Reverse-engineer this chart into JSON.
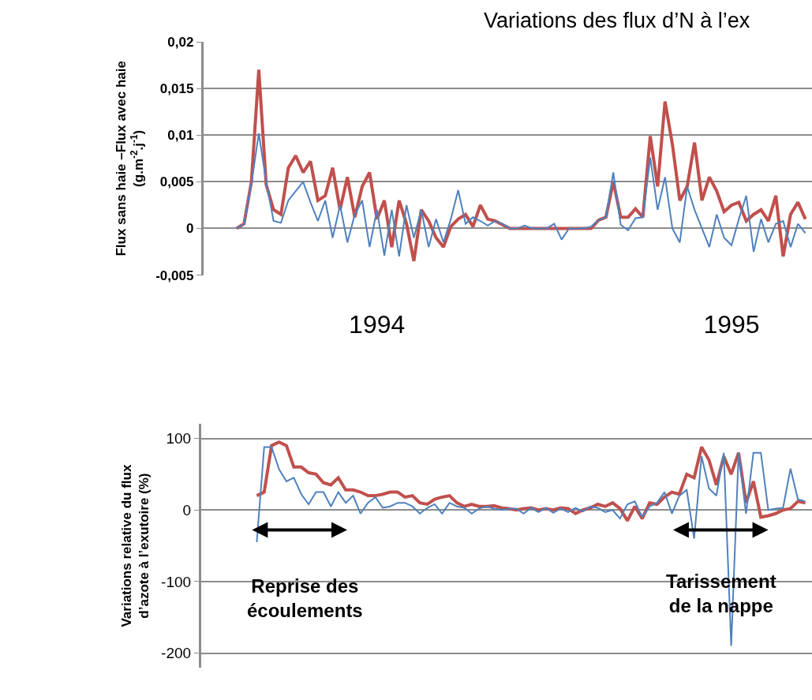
{
  "chart_data": [
    {
      "type": "line",
      "title": "Variations des flux d’N à l’ex",
      "ylabel": "Flux sans haie –Flux avec haie\n(g.m$^{-2}$.j$^{-1}$)",
      "categories": [
        null,
        null,
        null,
        null,
        null,
        null,
        null,
        null,
        null,
        null,
        null,
        null,
        null,
        null,
        null,
        null,
        null,
        null,
        null,
        null,
        null,
        null,
        null,
        "1994",
        null,
        null,
        null,
        null,
        null,
        null,
        null,
        null,
        null,
        null,
        null,
        null,
        null,
        null,
        null,
        null,
        null,
        null,
        null,
        null,
        null,
        null,
        null,
        null,
        null,
        null,
        null,
        null,
        null,
        null,
        null,
        null,
        null,
        null,
        null,
        null,
        null,
        null,
        null,
        null,
        null,
        null,
        null,
        null,
        null,
        null,
        null,
        "1995",
        null,
        null,
        null,
        null,
        null,
        null,
        null,
        null,
        null,
        null
      ],
      "series": [
        {
          "color": "#c0504d",
          "values": [
            null,
            null,
            null,
            null,
            0,
            0.0005,
            0.005,
            0.017,
            0.0047,
            0.002,
            0.0015,
            0.0065,
            0.0078,
            0.006,
            0.0072,
            0.003,
            0.0035,
            0.0065,
            0.002,
            0.0055,
            0.0012,
            0.0045,
            0.006,
            0.001,
            0.003,
            -0.002,
            0.003,
            0.0005,
            -0.0035,
            0.002,
            0.0008,
            -0.001,
            -0.002,
            0.0002,
            0.001,
            0.0015,
            0.0002,
            0.0025,
            0.001,
            0.0008,
            0.0004,
            0,
            0,
            0,
            0,
            0,
            0,
            0,
            0,
            0,
            0,
            0,
            0,
            0.0009,
            0.0012,
            0.005,
            0.0012,
            0.0012,
            0.0021,
            0.0012,
            0.0099,
            0.0045,
            0.0136,
            0.009,
            0.003,
            0.0045,
            0.0092,
            0.003,
            0.0055,
            0.004,
            0.0018,
            0.0025,
            0.0028,
            0.0008,
            0.0015,
            0.002,
            0.0008,
            0.0035,
            -0.003,
            0.0015,
            0.0028,
            0.001
          ]
        },
        {
          "color": "#4f81bd",
          "values": [
            null,
            null,
            null,
            null,
            0,
            0.0005,
            0.0048,
            0.0102,
            0.005,
            0.0008,
            0.0006,
            0.003,
            0.004,
            0.005,
            0.0028,
            0.0008,
            0.003,
            -0.001,
            0.0025,
            -0.0015,
            0.0015,
            0.003,
            -0.002,
            0.002,
            -0.0029,
            0.002,
            -0.003,
            0.0025,
            -0.001,
            0.002,
            -0.002,
            0.001,
            -0.0015,
            0.001,
            0.0041,
            0.0005,
            0.0012,
            0.0008,
            0.0003,
            0.0008,
            0.0005,
            0,
            0,
            0.0003,
            0,
            0,
            0,
            0.0005,
            -0.0012,
            0,
            0,
            0,
            0.0002,
            0.0009,
            0.0012,
            0.006,
            0.0004,
            -0.0002,
            0.0011,
            0.0012,
            0.0076,
            0.002,
            0.0055,
            0,
            -0.0015,
            0.0045,
            0.002,
            0,
            -0.002,
            0.0015,
            -0.001,
            -0.0018,
            0.001,
            0.0035,
            -0.0025,
            0.001,
            -0.0015,
            0.0005,
            0.0008,
            -0.002,
            0.0005,
            -0.0005
          ]
        }
      ],
      "ylim": [
        -0.005,
        0.02
      ],
      "yticks": [
        {
          "value": 0.02,
          "label": "0,02"
        },
        {
          "value": 0.015,
          "label": "0,015"
        },
        {
          "value": 0.01,
          "label": "0,01"
        },
        {
          "value": 0.005,
          "label": "0,005"
        },
        0,
        {
          "value": -0.005,
          "label": "-0,005"
        }
      ],
      "grid": "y"
    },
    {
      "type": "line",
      "ylabel": "Variations relative du flux\nd’azote à l’exutoire (%)",
      "categories": [
        null,
        null,
        null,
        null,
        null,
        null,
        null,
        null,
        null,
        null,
        null,
        null,
        null,
        null,
        null,
        null,
        null,
        null,
        null,
        null,
        null,
        null,
        null,
        null,
        null,
        null,
        null,
        null,
        null,
        null,
        null,
        null,
        null,
        null,
        null,
        null,
        null,
        null,
        null,
        null,
        null,
        null,
        null,
        null,
        null,
        null,
        null,
        null,
        null,
        null,
        null,
        null,
        null,
        null,
        null,
        null,
        null,
        null,
        null,
        null,
        null,
        null,
        null,
        null,
        null,
        null,
        null,
        null,
        null,
        null,
        null,
        null,
        null,
        null,
        null,
        null,
        null,
        null,
        null,
        null,
        null,
        null
      ],
      "series": [
        {
          "color": "#c0504d",
          "values": [
            null,
            null,
            null,
            null,
            null,
            null,
            null,
            20,
            25,
            90,
            95,
            90,
            60,
            60,
            52,
            50,
            38,
            35,
            45,
            28,
            28,
            25,
            20,
            20,
            22,
            25,
            25,
            18,
            20,
            10,
            8,
            15,
            18,
            20,
            10,
            5,
            8,
            5,
            5,
            6,
            3,
            2,
            0,
            2,
            3,
            0,
            2,
            0,
            3,
            2,
            -5,
            0,
            3,
            8,
            5,
            10,
            2,
            -15,
            5,
            -12,
            10,
            8,
            18,
            25,
            22,
            50,
            45,
            88,
            70,
            35,
            75,
            50,
            80,
            10,
            40,
            -10,
            -8,
            -5,
            0,
            2,
            12,
            10
          ]
        },
        {
          "color": "#4f81bd",
          "values": [
            null,
            null,
            null,
            null,
            null,
            null,
            null,
            -45,
            88,
            88,
            57,
            40,
            45,
            22,
            8,
            25,
            25,
            5,
            25,
            10,
            20,
            -5,
            10,
            18,
            3,
            5,
            10,
            10,
            5,
            -5,
            3,
            8,
            -5,
            10,
            5,
            3,
            -5,
            2,
            5,
            2,
            0,
            2,
            2,
            -5,
            3,
            -3,
            3,
            -4,
            2,
            -3,
            3,
            -2,
            5,
            3,
            -3,
            0,
            -12,
            8,
            12,
            -10,
            5,
            10,
            25,
            -5,
            20,
            28,
            -40,
            75,
            30,
            20,
            80,
            -190,
            80,
            -5,
            80,
            80,
            0,
            2,
            3,
            58,
            15,
            12
          ]
        }
      ],
      "ylim": [
        -220,
        120
      ],
      "yticks": [
        100,
        0,
        -100,
        -200
      ],
      "annotations": [
        "Reprise des\nécoulements",
        "Tarissement\nde la nappe"
      ],
      "grid": "y",
      "tick_labels": "y"
    }
  ]
}
